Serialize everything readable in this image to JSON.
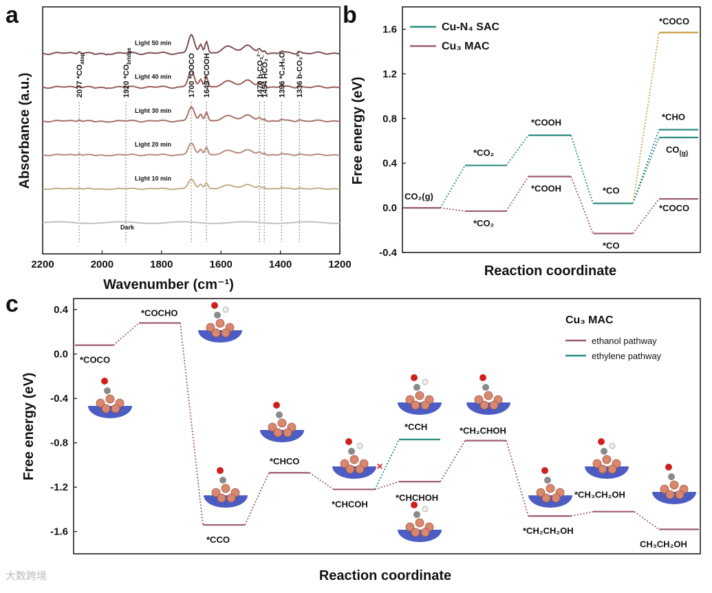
{
  "figure": {
    "watermark": "大数跨境",
    "colors": {
      "sac": "#2a8a7f",
      "mac": "#9c5a73",
      "coco_sac": "#c9a24a",
      "text": "#111111"
    }
  },
  "chart_data": [
    {
      "id": "a",
      "panel": "a",
      "type": "line",
      "xlabel": "Wavenumber (cm⁻¹)",
      "ylabel": "Absorbance (a.u.)",
      "xlim": [
        2200,
        1200
      ],
      "x_reversed": true,
      "x_ticks": [
        2200,
        2000,
        1800,
        1600,
        1400,
        1200
      ],
      "series": [
        {
          "name": "Light 50 min",
          "color": "#7a4f52",
          "baseline": 0.82
        },
        {
          "name": "Light 40 min",
          "color": "#9a5a58",
          "baseline": 0.68
        },
        {
          "name": "Light 30 min",
          "color": "#a97068",
          "baseline": 0.54
        },
        {
          "name": "Light 20 min",
          "color": "#b68b7c",
          "baseline": 0.4
        },
        {
          "name": "Light 10 min",
          "color": "#c4ac86",
          "baseline": 0.26
        },
        {
          "name": "Dark",
          "color": "#bfbfbf",
          "baseline": 0.12
        }
      ],
      "peaks": [
        {
          "x": 2077,
          "label": "2077 *CO",
          "sub": "atop"
        },
        {
          "x": 1920,
          "label": "1920 *CO",
          "sub": "bridge"
        },
        {
          "x": 1700,
          "label": "1700 *COCO"
        },
        {
          "x": 1649,
          "label": "1649 *COOH"
        },
        {
          "x": 1470,
          "label": "1470 b-CO₃²⁻"
        },
        {
          "x": 1454,
          "label": "1454 HCO₃⁻"
        },
        {
          "x": 1396,
          "label": "1396 *C₂H₅O"
        },
        {
          "x": 1336,
          "label": "1336 b-CO₃²⁻"
        }
      ]
    },
    {
      "id": "b",
      "panel": "b",
      "type": "line",
      "xlabel": "Reaction coordinate",
      "ylabel": "Free energy (eV)",
      "ylim": [
        -0.4,
        1.8
      ],
      "y_ticks": [
        -0.4,
        0.0,
        0.4,
        0.8,
        1.2,
        1.6
      ],
      "series": [
        {
          "name": "Cu-N₄ SAC",
          "color": "#2a8a7f",
          "steps": [
            {
              "slot": 0,
              "y": 0.0
            },
            {
              "slot": 1,
              "y": 0.38
            },
            {
              "slot": 2,
              "y": 0.65
            },
            {
              "slot": 3,
              "y": 0.04
            },
            {
              "slot": 4,
              "y": 0.7
            },
            {
              "slot": 4,
              "y": 0.63
            }
          ]
        },
        {
          "name": "Cu₃ MAC",
          "color": "#9c5a73",
          "steps": [
            {
              "slot": 0,
              "y": 0.0
            },
            {
              "slot": 1,
              "y": -0.03
            },
            {
              "slot": 2,
              "y": 0.28
            },
            {
              "slot": 3,
              "y": -0.23
            },
            {
              "slot": 4,
              "y": 0.08
            }
          ]
        },
        {
          "name": "*COCO (SAC)",
          "color": "#c9a24a",
          "steps": [
            {
              "slot": 4,
              "y": 1.57
            }
          ]
        }
      ],
      "labels": {
        "co2g": "CO₂(g)",
        "co2_sac": "*CO₂",
        "co2_mac": "*CO₂",
        "cooh_sac": "*COOH",
        "cooh_mac": "*COOH",
        "co_sac": "*CO",
        "co_mac": "*CO",
        "cho": "*CHO",
        "cog": "CO",
        "cog_sub": "(g)",
        "coco_top": "*COCO",
        "coco_mac": "*COCO"
      }
    },
    {
      "id": "c",
      "panel": "c",
      "type": "line",
      "title": "Cu₃ MAC",
      "xlabel": "Reaction coordinate",
      "ylabel": "Free energy (eV)",
      "ylim": [
        -1.8,
        0.5
      ],
      "y_ticks": [
        -1.6,
        -1.2,
        -0.8,
        -0.4,
        0.0,
        0.4
      ],
      "series": [
        {
          "name": "ethanol pathway",
          "color": "#9c5a73",
          "steps": [
            {
              "slot": 0,
              "y": 0.08,
              "label": "*COCO"
            },
            {
              "slot": 1,
              "y": 0.28,
              "label": "*COCHO"
            },
            {
              "slot": 2,
              "y": -1.54,
              "label": "*CCO"
            },
            {
              "slot": 3,
              "y": -1.07,
              "label": "*CHCO"
            },
            {
              "slot": 4,
              "y": -1.22,
              "label": "*CHCOH"
            },
            {
              "slot": 5,
              "y": -1.15,
              "label": "*CHCHOH"
            },
            {
              "slot": 6,
              "y": -0.78,
              "label": "*CH₂CHOH"
            },
            {
              "slot": 7,
              "y": -1.46,
              "label": "*CH₂CH₂OH"
            },
            {
              "slot": 8,
              "y": -1.42,
              "label": "*CH₃CH₂OH"
            },
            {
              "slot": 9,
              "y": -1.58,
              "label": "CH₃CH₂OH"
            }
          ]
        },
        {
          "name": "ethylene pathway",
          "color": "#2a8a7f",
          "steps": [
            {
              "slot": 5,
              "y": -0.77,
              "label": "*CCH"
            }
          ]
        }
      ],
      "blocked_marker": "×"
    }
  ]
}
